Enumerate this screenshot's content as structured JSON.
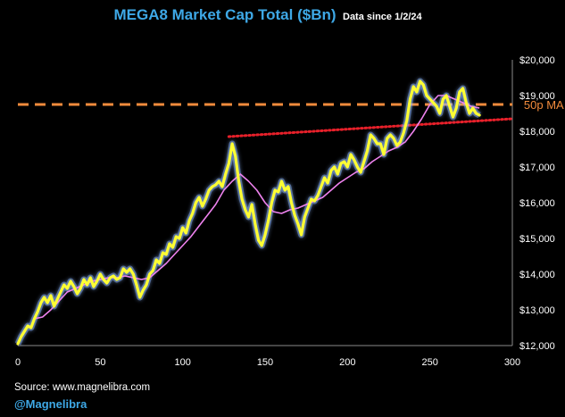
{
  "chart_data": {
    "type": "line",
    "title": "MEGA8 Market Cap Total ($Bn)",
    "subtitle": "Data since 1/2/24",
    "xlabel": "",
    "ylabel": "",
    "xlim": [
      0,
      300
    ],
    "ylim": [
      12000,
      20000
    ],
    "x_ticks": [
      0,
      50,
      100,
      150,
      200,
      250,
      300
    ],
    "y_ticks": [
      12000,
      13000,
      14000,
      15000,
      16000,
      17000,
      18000,
      19000,
      20000
    ],
    "y_tick_labels": [
      "$12,000",
      "$13,000",
      "$14,000",
      "$15,000",
      "$16,000",
      "$17,000",
      "$18,000",
      "$19,000",
      "$20,000"
    ],
    "grid": false,
    "colors": {
      "background": "#000000",
      "title": "#3ea8e6",
      "price": "#ffff33",
      "price_glow": "#8fb8ff",
      "ma": "#ee82ee",
      "ma_level": "#f28b3c",
      "trend": "#e8202a",
      "handle": "#3ea8e6"
    },
    "series": [
      {
        "name": "MEGA8 Market Cap",
        "style": "thick yellow line",
        "points": [
          [
            0,
            12050
          ],
          [
            2,
            12250
          ],
          [
            4,
            12400
          ],
          [
            6,
            12550
          ],
          [
            8,
            12500
          ],
          [
            10,
            12750
          ],
          [
            12,
            12950
          ],
          [
            14,
            13200
          ],
          [
            16,
            13350
          ],
          [
            18,
            13200
          ],
          [
            20,
            13400
          ],
          [
            22,
            13100
          ],
          [
            24,
            13300
          ],
          [
            26,
            13500
          ],
          [
            28,
            13700
          ],
          [
            30,
            13600
          ],
          [
            32,
            13800
          ],
          [
            34,
            13650
          ],
          [
            36,
            13450
          ],
          [
            38,
            13600
          ],
          [
            40,
            13850
          ],
          [
            42,
            13700
          ],
          [
            44,
            13900
          ],
          [
            46,
            13650
          ],
          [
            48,
            13800
          ],
          [
            50,
            14000
          ],
          [
            52,
            13850
          ],
          [
            54,
            13750
          ],
          [
            56,
            13900
          ],
          [
            58,
            13950
          ],
          [
            60,
            13850
          ],
          [
            62,
            13900
          ],
          [
            64,
            14150
          ],
          [
            66,
            14050
          ],
          [
            68,
            14150
          ],
          [
            70,
            14000
          ],
          [
            72,
            13700
          ],
          [
            74,
            13350
          ],
          [
            76,
            13550
          ],
          [
            78,
            13700
          ],
          [
            80,
            14000
          ],
          [
            82,
            14100
          ],
          [
            84,
            14400
          ],
          [
            86,
            14300
          ],
          [
            88,
            14600
          ],
          [
            90,
            14550
          ],
          [
            92,
            14850
          ],
          [
            94,
            14750
          ],
          [
            96,
            15050
          ],
          [
            98,
            15000
          ],
          [
            100,
            15300
          ],
          [
            102,
            15150
          ],
          [
            104,
            15500
          ],
          [
            106,
            15700
          ],
          [
            108,
            16000
          ],
          [
            110,
            16150
          ],
          [
            112,
            15900
          ],
          [
            114,
            16100
          ],
          [
            116,
            16350
          ],
          [
            118,
            16450
          ],
          [
            120,
            16500
          ],
          [
            122,
            16600
          ],
          [
            124,
            16450
          ],
          [
            126,
            16800
          ],
          [
            128,
            17100
          ],
          [
            130,
            17650
          ],
          [
            132,
            17300
          ],
          [
            134,
            16600
          ],
          [
            136,
            16100
          ],
          [
            138,
            15800
          ],
          [
            140,
            15600
          ],
          [
            142,
            15950
          ],
          [
            144,
            15400
          ],
          [
            146,
            14950
          ],
          [
            148,
            14800
          ],
          [
            150,
            15100
          ],
          [
            152,
            15500
          ],
          [
            154,
            16000
          ],
          [
            156,
            16350
          ],
          [
            158,
            16300
          ],
          [
            160,
            16600
          ],
          [
            162,
            16350
          ],
          [
            164,
            16450
          ],
          [
            166,
            16000
          ],
          [
            168,
            15650
          ],
          [
            170,
            15400
          ],
          [
            172,
            15100
          ],
          [
            174,
            15600
          ],
          [
            176,
            15850
          ],
          [
            178,
            16100
          ],
          [
            180,
            16050
          ],
          [
            182,
            16200
          ],
          [
            184,
            16450
          ],
          [
            186,
            16700
          ],
          [
            188,
            16550
          ],
          [
            190,
            16900
          ],
          [
            192,
            17000
          ],
          [
            194,
            16800
          ],
          [
            196,
            17100
          ],
          [
            198,
            17150
          ],
          [
            200,
            17000
          ],
          [
            202,
            17350
          ],
          [
            204,
            17200
          ],
          [
            206,
            17000
          ],
          [
            208,
            16850
          ],
          [
            210,
            17150
          ],
          [
            212,
            17450
          ],
          [
            214,
            17900
          ],
          [
            216,
            17800
          ],
          [
            218,
            17650
          ],
          [
            220,
            17650
          ],
          [
            222,
            17350
          ],
          [
            224,
            17800
          ],
          [
            226,
            17900
          ],
          [
            228,
            17800
          ],
          [
            230,
            17600
          ],
          [
            232,
            17700
          ],
          [
            234,
            17950
          ],
          [
            236,
            18300
          ],
          [
            238,
            18900
          ],
          [
            240,
            19250
          ],
          [
            242,
            19100
          ],
          [
            244,
            19400
          ],
          [
            246,
            19300
          ],
          [
            248,
            19000
          ],
          [
            250,
            18900
          ],
          [
            252,
            18800
          ],
          [
            254,
            18700
          ],
          [
            256,
            18500
          ],
          [
            258,
            18900
          ],
          [
            260,
            19000
          ],
          [
            262,
            18700
          ],
          [
            264,
            18400
          ],
          [
            266,
            18650
          ],
          [
            268,
            19100
          ],
          [
            270,
            19200
          ],
          [
            272,
            18800
          ],
          [
            274,
            18500
          ],
          [
            276,
            18650
          ],
          [
            278,
            18500
          ],
          [
            280,
            18450
          ]
        ]
      },
      {
        "name": "50p MA",
        "style": "thin violet line",
        "points": [
          [
            10,
            12750
          ],
          [
            15,
            12800
          ],
          [
            20,
            13000
          ],
          [
            25,
            13250
          ],
          [
            30,
            13500
          ],
          [
            35,
            13600
          ],
          [
            40,
            13700
          ],
          [
            45,
            13800
          ],
          [
            50,
            13850
          ],
          [
            55,
            13900
          ],
          [
            60,
            13900
          ],
          [
            65,
            13950
          ],
          [
            70,
            13900
          ],
          [
            75,
            13850
          ],
          [
            80,
            13900
          ],
          [
            85,
            14100
          ],
          [
            90,
            14300
          ],
          [
            95,
            14550
          ],
          [
            100,
            14800
          ],
          [
            105,
            15050
          ],
          [
            110,
            15350
          ],
          [
            115,
            15650
          ],
          [
            120,
            15950
          ],
          [
            125,
            16350
          ],
          [
            130,
            16600
          ],
          [
            135,
            16800
          ],
          [
            140,
            16600
          ],
          [
            145,
            16350
          ],
          [
            150,
            16000
          ],
          [
            155,
            15750
          ],
          [
            160,
            15700
          ],
          [
            165,
            15800
          ],
          [
            170,
            15850
          ],
          [
            175,
            15950
          ],
          [
            180,
            16050
          ],
          [
            185,
            16150
          ],
          [
            190,
            16350
          ],
          [
            195,
            16550
          ],
          [
            200,
            16700
          ],
          [
            205,
            16850
          ],
          [
            210,
            16950
          ],
          [
            215,
            17150
          ],
          [
            220,
            17300
          ],
          [
            225,
            17450
          ],
          [
            230,
            17550
          ],
          [
            235,
            17700
          ],
          [
            240,
            18000
          ],
          [
            245,
            18350
          ],
          [
            250,
            18750
          ],
          [
            255,
            19000
          ],
          [
            260,
            19000
          ],
          [
            265,
            18900
          ],
          [
            270,
            18800
          ],
          [
            275,
            18700
          ],
          [
            280,
            18650
          ]
        ]
      }
    ],
    "reference_lines": [
      {
        "name": "50p MA level",
        "style": "dashed orange",
        "x": [
          0,
          300
        ],
        "y": [
          18750,
          18750
        ]
      },
      {
        "name": "rising support trend",
        "style": "dotted red",
        "x": [
          128,
          300
        ],
        "y": [
          17850,
          18350
        ]
      }
    ],
    "annotations": [
      {
        "text": "50p MA",
        "x": 307,
        "y": 18750,
        "color": "#f28b3c"
      }
    ]
  },
  "footer": {
    "source": "Source: www.magnelibra.com",
    "handle": "@Magnelibra"
  }
}
